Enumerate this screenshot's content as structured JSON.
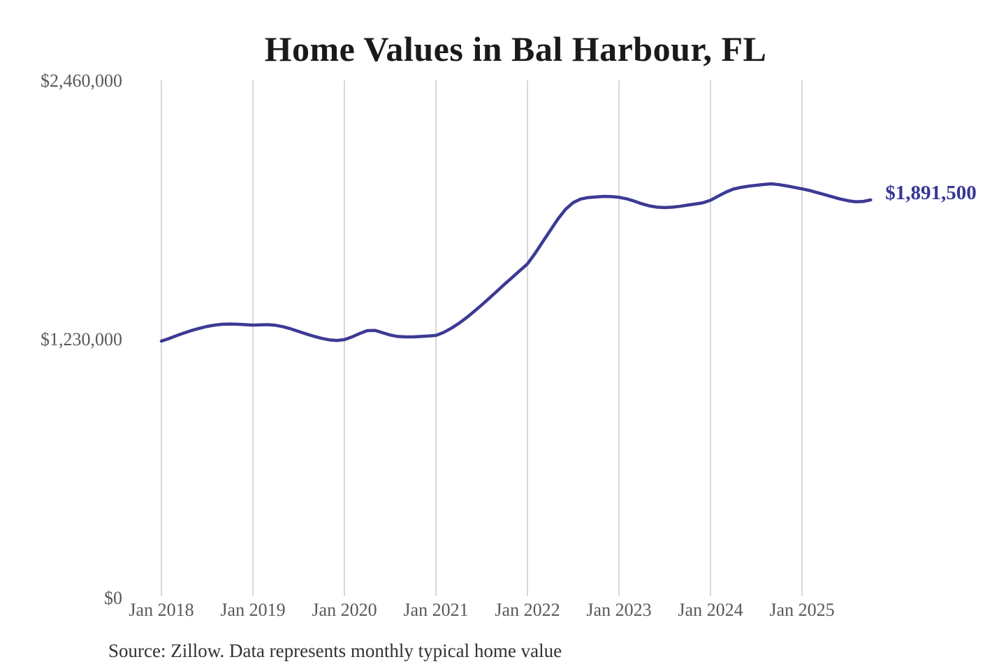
{
  "title": "Home Values in Bal Harbour, FL",
  "source_note": "Source: Zillow. Data represents monthly typical home value",
  "chart_data": {
    "type": "line",
    "title": "Home Values in Bal Harbour, FL",
    "xlabel": "",
    "ylabel": "",
    "ylim": [
      0,
      2460000
    ],
    "grid": "vertical-only",
    "legend": "none",
    "y_ticks": [
      {
        "label": "$0",
        "value": 0
      },
      {
        "label": "$1,230,000",
        "value": 1230000
      },
      {
        "label": "$2,460,000",
        "value": 2460000
      }
    ],
    "x_ticks": [
      {
        "label": "Jan 2018",
        "month_index": 0
      },
      {
        "label": "Jan 2019",
        "month_index": 12
      },
      {
        "label": "Jan 2020",
        "month_index": 24
      },
      {
        "label": "Jan 2021",
        "month_index": 36
      },
      {
        "label": "Jan 2022",
        "month_index": 48
      },
      {
        "label": "Jan 2023",
        "month_index": 60
      },
      {
        "label": "Jan 2024",
        "month_index": 72
      },
      {
        "label": "Jan 2025",
        "month_index": 84
      }
    ],
    "series": [
      {
        "name": "Monthly typical home value",
        "start": "Jan 2018",
        "frequency": "monthly",
        "unit": "USD",
        "values": [
          1220000,
          1232000,
          1246000,
          1259000,
          1271000,
          1281000,
          1290000,
          1296000,
          1300000,
          1301000,
          1300000,
          1298000,
          1296000,
          1297000,
          1298000,
          1295000,
          1288000,
          1278000,
          1266000,
          1254000,
          1243000,
          1233000,
          1226000,
          1223000,
          1227000,
          1240000,
          1256000,
          1270000,
          1271000,
          1260000,
          1249000,
          1242000,
          1240000,
          1240000,
          1242000,
          1244000,
          1247000,
          1261000,
          1281000,
          1304000,
          1331000,
          1361000,
          1392000,
          1424000,
          1457000,
          1491000,
          1523000,
          1555000,
          1587000,
          1637000,
          1692000,
          1747000,
          1801000,
          1847000,
          1879000,
          1896000,
          1903000,
          1906000,
          1908000,
          1907000,
          1904000,
          1897000,
          1886000,
          1873000,
          1863000,
          1857000,
          1855000,
          1857000,
          1861000,
          1867000,
          1872000,
          1878000,
          1890000,
          1909000,
          1928000,
          1943000,
          1951000,
          1957000,
          1961000,
          1965000,
          1968000,
          1964000,
          1958000,
          1951000,
          1944000,
          1936000,
          1926000,
          1916000,
          1906000,
          1896000,
          1888000,
          1883000,
          1884000,
          1891500
        ]
      }
    ],
    "end_label": "$1,891,500",
    "end_value": 1891500,
    "colors": {
      "line": "#3c3a94",
      "end_label": "#373795",
      "grid": "#cccccc",
      "tick_text": "#595959",
      "title_text": "#1a1a1a",
      "source_text": "#333333"
    }
  }
}
